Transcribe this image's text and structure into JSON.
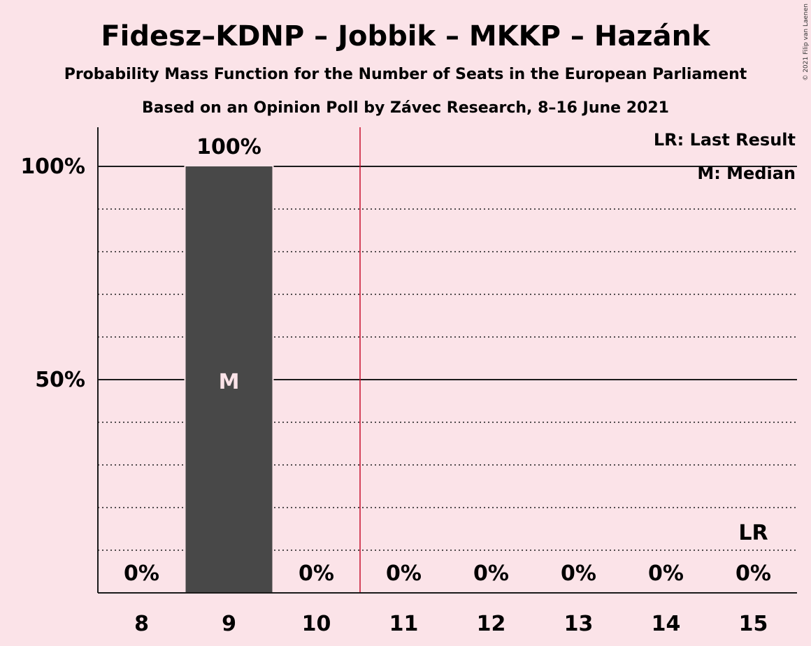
{
  "title": "Fidesz–KDNP – Jobbik – MKKP – Hazánk",
  "subtitle1": "Probability Mass Function for the Number of Seats in the European Parliament",
  "subtitle2": "Based on an Opinion Poll by Závec Research, 8–16 June 2021",
  "copyright": "© 2021 Filip van Laenen",
  "legend": {
    "last_result": "LR: Last Result",
    "median": "M: Median"
  },
  "colors": {
    "background": "#fbe3e8",
    "bar": "#484848",
    "last_result_line": "#c8102e",
    "median_label": "#fbe3e8"
  },
  "chart_data": {
    "type": "bar",
    "categories": [
      8,
      9,
      10,
      11,
      12,
      13,
      14,
      15
    ],
    "values": [
      0,
      100,
      0,
      0,
      0,
      0,
      0,
      0
    ],
    "value_labels": [
      "0%",
      "100%",
      "0%",
      "0%",
      "0%",
      "0%",
      "0%",
      "0%"
    ],
    "ylim": [
      0,
      110
    ],
    "yticks": [
      50,
      100
    ],
    "ytick_labels": [
      "50%",
      "100%"
    ],
    "minor_gridlines": [
      10,
      20,
      30,
      40,
      60,
      70,
      80,
      90
    ],
    "median_seat": 9,
    "median_label": "M",
    "last_result_seat": 15,
    "last_result_label": "LR",
    "majority_line_between": [
      10,
      11
    ],
    "xlabel": "",
    "ylabel": ""
  }
}
